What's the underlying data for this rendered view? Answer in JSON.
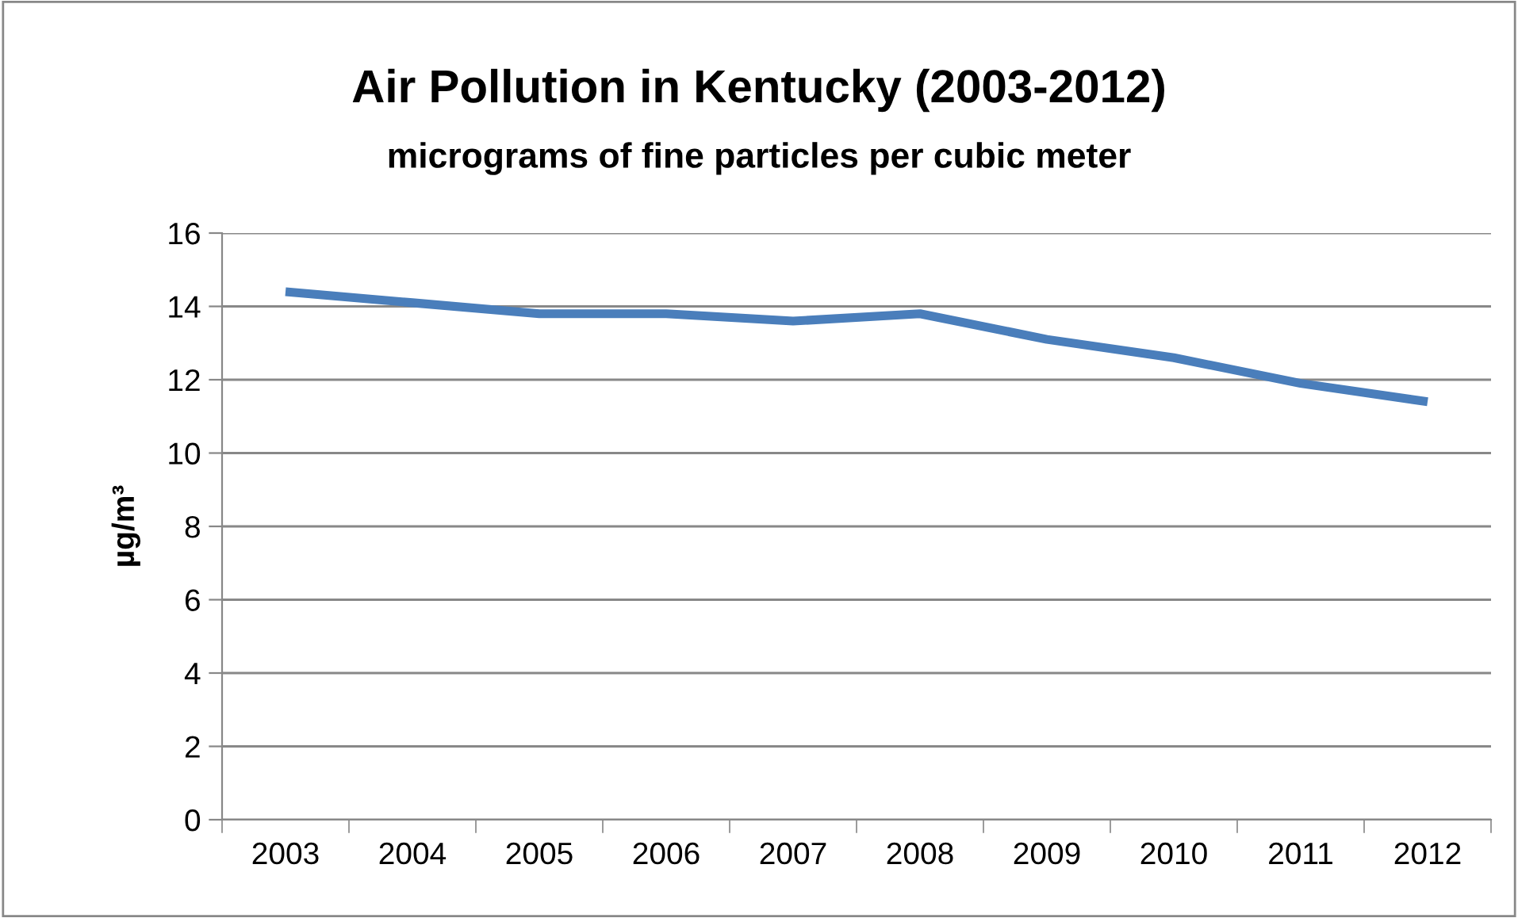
{
  "chart_data": {
    "type": "line",
    "title": "Air Pollution in Kentucky (2003-2012)",
    "subtitle": "micrograms of fine particles per cubic meter",
    "ylabel": "µg/m³",
    "categories": [
      "2003",
      "2004",
      "2005",
      "2006",
      "2007",
      "2008",
      "2009",
      "2010",
      "2011",
      "2012"
    ],
    "series": [
      {
        "color": "#4a7ebb",
        "values": [
          14.4,
          14.1,
          13.8,
          13.8,
          13.6,
          13.8,
          13.1,
          12.6,
          11.9,
          11.4
        ]
      }
    ],
    "ylim": [
      0,
      16
    ],
    "yticks": [
      0,
      2,
      4,
      6,
      8,
      10,
      12,
      14,
      16
    ],
    "grid": "y",
    "marker": "none",
    "line_style": "solid"
  }
}
